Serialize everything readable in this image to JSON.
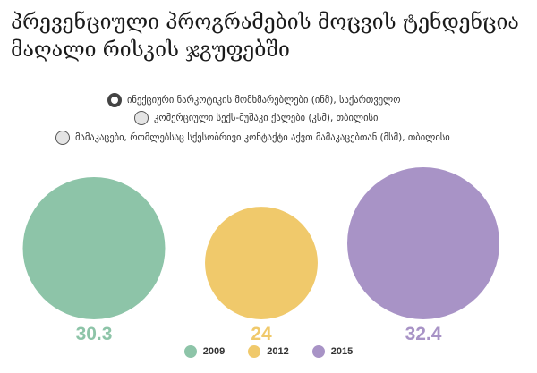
{
  "title": "პრევენციული პროგრამების მოცვის ტენდენცია მაღალი რისკის ჯგუფებში",
  "filters": [
    {
      "label": "ინექციური ნარკოტიკის მომხმარებლები (ინმ), საქართველო",
      "selected": true
    },
    {
      "label": "კომერციული სექს-მუშაკი ქალები (კსმ), თბილისი",
      "selected": false
    },
    {
      "label": "მამაკაცები, რომლებსაც სქესობრივი კონტაქტი აქვთ მამაკაცებთან (მსმ), თბილისი",
      "selected": false
    }
  ],
  "chart_data": {
    "type": "bubble",
    "categories": [
      "2009",
      "2012",
      "2015"
    ],
    "values": [
      30.3,
      24,
      32.4
    ],
    "colors": [
      "#8dc4a8",
      "#f0c96b",
      "#a893c6"
    ],
    "legend": [
      "2009",
      "2012",
      "2015"
    ],
    "legend_position": "bottom"
  }
}
